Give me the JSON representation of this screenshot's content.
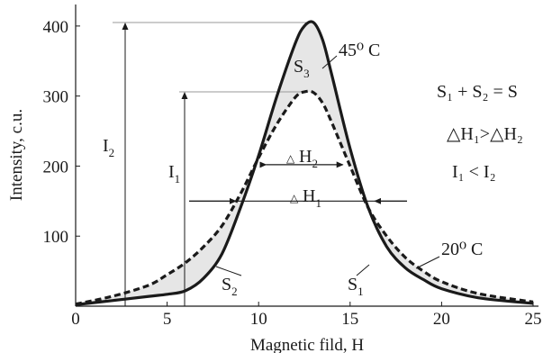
{
  "chart_data": {
    "type": "line",
    "xlabel": "Magnetic fild, H",
    "ylabel": "Intensity, c.u.",
    "xlim": [
      0,
      25
    ],
    "ylim": [
      0,
      420
    ],
    "xticks": [
      "0",
      "5",
      "10",
      "15",
      "20",
      "25"
    ],
    "yticks": [
      "100",
      "200",
      "300",
      "400"
    ],
    "grid": false,
    "series": [
      {
        "name": "45⁰ C",
        "style": "solid",
        "x": [
          0,
          2,
          4,
          5,
          6,
          7,
          8,
          9,
          10,
          11,
          12,
          12.5,
          13,
          13.5,
          14,
          15,
          16,
          17,
          18,
          19,
          20,
          22,
          25
        ],
        "y": [
          2,
          8,
          14,
          17,
          22,
          40,
          75,
          140,
          215,
          300,
          375,
          400,
          405,
          380,
          330,
          225,
          140,
          85,
          55,
          38,
          25,
          12,
          4
        ]
      },
      {
        "name": "20⁰ C",
        "style": "dashed",
        "x": [
          0,
          2,
          4,
          5,
          6,
          7,
          8,
          9,
          10,
          11,
          12,
          12.5,
          13,
          13.5,
          14,
          15,
          16,
          17,
          18,
          19,
          20,
          22,
          25
        ],
        "y": [
          3,
          14,
          30,
          45,
          62,
          85,
          115,
          160,
          212,
          260,
          298,
          306,
          305,
          290,
          262,
          200,
          140,
          100,
          70,
          50,
          35,
          18,
          6
        ]
      }
    ],
    "annotations": {
      "I2": {
        "base": "I",
        "sub": "2"
      },
      "I1": {
        "base": "I",
        "sub": "1"
      },
      "S1": {
        "base": "S",
        "sub": "1"
      },
      "S2": {
        "base": "S",
        "sub": "2"
      },
      "S3": {
        "base": "S",
        "sub": "3"
      },
      "dH1": {
        "base": "H",
        "sub": "1"
      },
      "dH2": {
        "base": "H",
        "sub": "2"
      },
      "eq1": "S₁ + S₂ = S",
      "eq2": "△H₁>△H₂",
      "eq3": "I₁ <  I₂",
      "temp45": "45⁰ C",
      "temp20": "20⁰ C"
    }
  },
  "colors": {
    "line": "#1a1a1a",
    "fill": "#e6e6e6",
    "guide": "#9a9a9a"
  }
}
